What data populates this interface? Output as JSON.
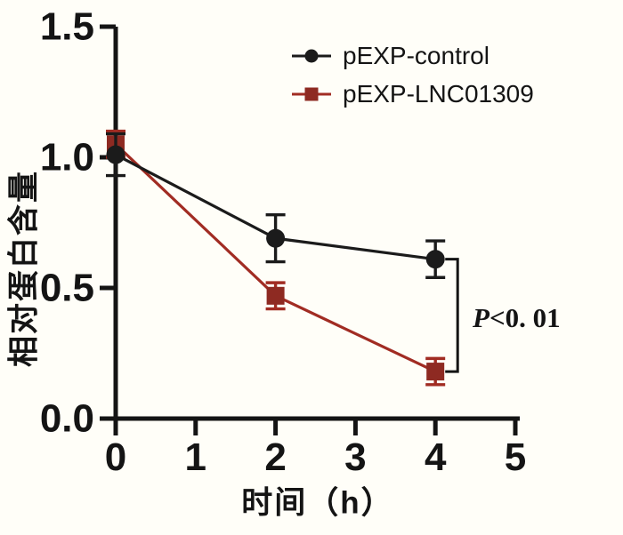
{
  "figure": {
    "background": "#fffef8",
    "axis_color": "#141414"
  },
  "chart_data": {
    "type": "line",
    "title": "",
    "xlabel": "时间（h）",
    "ylabel": "相对蛋白含量",
    "xlim": [
      0,
      5
    ],
    "ylim": [
      0,
      1.5
    ],
    "x_ticks": [
      0,
      1,
      2,
      3,
      4,
      5
    ],
    "x_tick_labels": [
      "0",
      "1",
      "2",
      "3",
      "4",
      "5"
    ],
    "y_ticks": [
      0.0,
      0.5,
      1.0,
      1.5
    ],
    "y_tick_labels": [
      "0.0",
      "0.5",
      "1.0",
      "1.5"
    ],
    "grid": false,
    "legend_position": "inside-top-right",
    "series": [
      {
        "name": "pEXP-control",
        "marker": "circle",
        "marker_color": "#1b1b1b",
        "line_color": "#1b1b1b",
        "x": [
          0,
          2,
          4
        ],
        "y": [
          1.01,
          0.69,
          0.61
        ],
        "yerr": [
          0.08,
          0.09,
          0.07
        ]
      },
      {
        "name": "pEXP-LNC01309",
        "marker": "square",
        "marker_color": "#8e2a22",
        "line_color": "#a12c23",
        "x": [
          0,
          2,
          4
        ],
        "y": [
          1.05,
          0.47,
          0.18
        ],
        "yerr": [
          0.05,
          0.05,
          0.05
        ]
      }
    ],
    "annotation": {
      "text": "P<0. 01",
      "at_x": 4,
      "between_series": [
        0,
        1
      ]
    }
  }
}
